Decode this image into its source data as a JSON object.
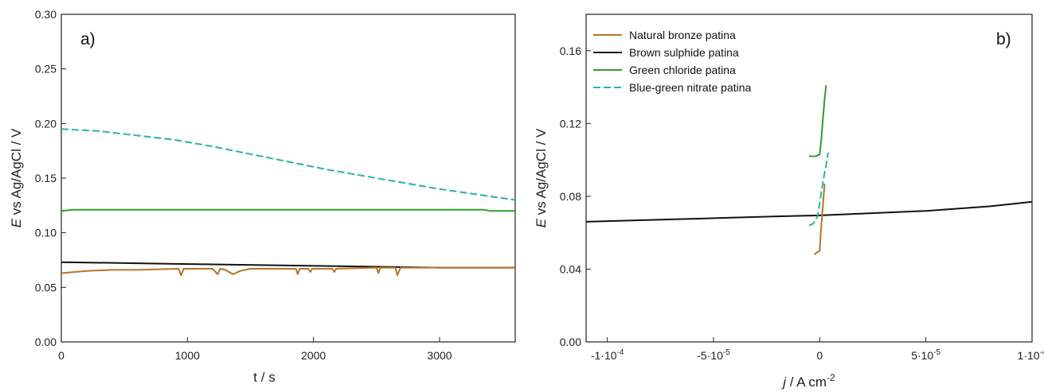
{
  "colors": {
    "natural_bronze": "#b8732a",
    "brown_sulphide": "#111111",
    "green_chloride": "#2ca02c",
    "blue_green_nitrate": "#2ab3a3"
  },
  "chart_data": [
    {
      "type": "line",
      "panel_label": "a)",
      "xlabel": "t / s",
      "ylabel_italic": "E",
      "ylabel_rest": " vs Ag/AgCl / V",
      "xlim": [
        0,
        3600
      ],
      "ylim": [
        0,
        0.3
      ],
      "xticks": [
        0,
        1000,
        2000,
        3000
      ],
      "xtick_labels": [
        "0",
        "1000",
        "2000",
        "3000"
      ],
      "yticks": [
        0,
        0.05,
        0.1,
        0.15,
        0.2,
        0.25,
        0.3
      ],
      "ytick_labels": [
        "0.00",
        "0.05",
        "0.10",
        "0.15",
        "0.20",
        "0.25",
        "0.30"
      ],
      "grid": false,
      "series": [
        {
          "key": "blue_green_nitrate",
          "dashed": true,
          "x": [
            0,
            300,
            600,
            900,
            1200,
            1500,
            1800,
            2100,
            2400,
            2700,
            3000,
            3300,
            3600
          ],
          "y": [
            0.195,
            0.193,
            0.189,
            0.185,
            0.179,
            0.172,
            0.165,
            0.158,
            0.152,
            0.146,
            0.14,
            0.135,
            0.13
          ]
        },
        {
          "key": "green_chloride",
          "dashed": false,
          "x": [
            0,
            100,
            3350,
            3400,
            3600
          ],
          "y": [
            0.12,
            0.121,
            0.121,
            0.12,
            0.12
          ]
        },
        {
          "key": "brown_sulphide",
          "dashed": false,
          "x": [
            0,
            600,
            1200,
            1800,
            2400,
            3000,
            3600
          ],
          "y": [
            0.073,
            0.072,
            0.071,
            0.07,
            0.069,
            0.068,
            0.068
          ]
        },
        {
          "key": "natural_bronze",
          "dashed": false,
          "x": [
            0,
            200,
            400,
            600,
            930,
            950,
            970,
            1200,
            1240,
            1260,
            1300,
            1360,
            1420,
            1500,
            1860,
            1875,
            1890,
            1960,
            1975,
            1990,
            2150,
            2165,
            2180,
            2500,
            2515,
            2530,
            2650,
            2665,
            2690,
            3000,
            3300,
            3600
          ],
          "y": [
            0.063,
            0.065,
            0.066,
            0.066,
            0.067,
            0.061,
            0.067,
            0.067,
            0.062,
            0.067,
            0.066,
            0.062,
            0.065,
            0.067,
            0.067,
            0.062,
            0.067,
            0.067,
            0.064,
            0.067,
            0.067,
            0.064,
            0.067,
            0.068,
            0.063,
            0.068,
            0.068,
            0.061,
            0.068,
            0.068,
            0.068,
            0.068
          ]
        }
      ]
    },
    {
      "type": "line",
      "panel_label": "b)",
      "xlabel_italic": "j",
      "xlabel_rest": " / A cm",
      "xlabel_sup": "-2",
      "ylabel_italic": "E",
      "ylabel_rest": " vs Ag/AgCl / V",
      "xlim": [
        -0.00011,
        0.0001
      ],
      "ylim": [
        0,
        0.18
      ],
      "xticks": [
        -0.0001,
        -5e-05,
        0,
        5e-05,
        0.0001
      ],
      "xtick_labels": [
        "-1·10-4",
        "-5·10-5",
        "0",
        "5·10-5",
        "1·10-4"
      ],
      "yticks": [
        0,
        0.04,
        0.08,
        0.12,
        0.16
      ],
      "ytick_labels": [
        "0.00",
        "0.04",
        "0.08",
        "0.12",
        "0.16"
      ],
      "grid": false,
      "legend": {
        "position": "top-left",
        "entries": [
          {
            "key": "natural_bronze",
            "label": "Natural bronze patina",
            "dashed": false
          },
          {
            "key": "brown_sulphide",
            "label": "Brown sulphide patina",
            "dashed": false
          },
          {
            "key": "green_chloride",
            "label": "Green chloride patina",
            "dashed": false
          },
          {
            "key": "blue_green_nitrate",
            "label": "Blue-green nitrate patina",
            "dashed": true
          }
        ]
      },
      "series": [
        {
          "key": "brown_sulphide",
          "dashed": false,
          "x": [
            -0.00011,
            -8e-05,
            -5e-05,
            -2e-05,
            0,
            2e-05,
            5e-05,
            8e-05,
            0.0001
          ],
          "y": [
            0.066,
            0.067,
            0.068,
            0.069,
            0.0695,
            0.0705,
            0.072,
            0.0745,
            0.077
          ]
        },
        {
          "key": "green_chloride",
          "dashed": false,
          "x": [
            -5e-06,
            -2e-06,
            0,
            8e-07,
            1.5e-06,
            2.2e-06,
            3e-06
          ],
          "y": [
            0.102,
            0.102,
            0.103,
            0.112,
            0.122,
            0.132,
            0.141
          ]
        },
        {
          "key": "blue_green_nitrate",
          "dashed": true,
          "x": [
            -5e-06,
            -3e-06,
            -1e-06,
            0,
            1e-06,
            2e-06,
            3e-06,
            4e-06
          ],
          "y": [
            0.064,
            0.065,
            0.069,
            0.076,
            0.084,
            0.091,
            0.097,
            0.104
          ]
        },
        {
          "key": "natural_bronze",
          "dashed": false,
          "x": [
            -2.5e-06,
            -1.5e-06,
            0,
            5e-07,
            1.1e-06,
            1.7e-06,
            2.3e-06
          ],
          "y": [
            0.048,
            0.049,
            0.05,
            0.06,
            0.069,
            0.078,
            0.087
          ]
        }
      ]
    }
  ]
}
